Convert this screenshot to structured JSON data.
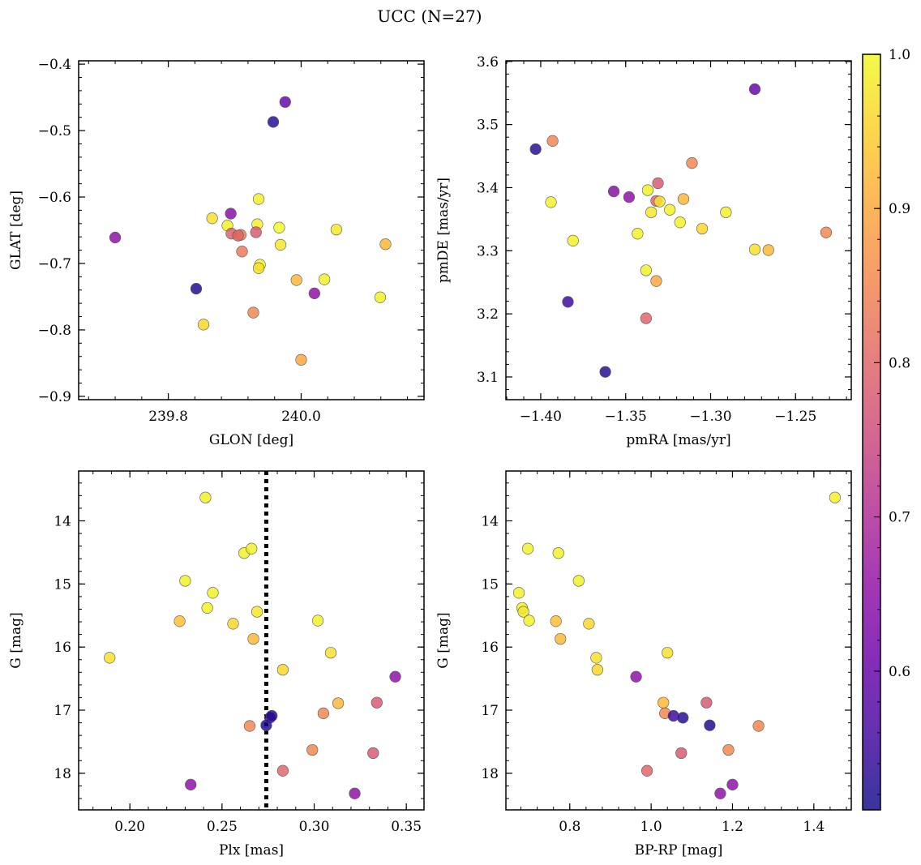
{
  "figure": {
    "suptitle": "UCC (N=27)"
  },
  "colorbar": {
    "colormap": "plasma",
    "range": [
      0.51,
      1.0
    ],
    "ticks": [
      0.6,
      0.7,
      0.8,
      0.9,
      1.0
    ],
    "tick_labels": [
      "0.6",
      "0.7",
      "0.8",
      "0.9",
      "1.0"
    ]
  },
  "chart_data": [
    {
      "type": "scatter",
      "panel": "top-left",
      "xlabel": "GLON [deg]",
      "ylabel": "GLAT [deg]",
      "xlim": [
        239.665,
        240.185
      ],
      "ylim": [
        -0.905,
        -0.395
      ],
      "xticks": [
        239.8,
        240.0
      ],
      "xtick_labels": [
        "239.8",
        "240.0"
      ],
      "yticks": [
        -0.9,
        -0.8,
        -0.7,
        -0.6,
        -0.5,
        -0.4
      ],
      "ytick_labels": [
        "−0.9",
        "−0.8",
        "−0.7",
        "−0.6",
        "−0.5",
        "−0.4"
      ],
      "x": [
        239.976,
        239.958,
        239.72,
        239.842,
        239.853,
        239.866,
        239.889,
        239.895,
        239.894,
        239.909,
        239.905,
        239.911,
        239.936,
        239.934,
        239.932,
        239.967,
        239.969,
        239.938,
        239.936,
        239.928,
        239.993,
        240.0,
        240.053,
        240.035,
        240.02,
        240.127,
        240.119
      ],
      "y": [
        -0.457,
        -0.487,
        -0.661,
        -0.738,
        -0.792,
        -0.632,
        -0.643,
        -0.655,
        -0.625,
        -0.657,
        -0.658,
        -0.682,
        -0.603,
        -0.641,
        -0.653,
        -0.646,
        -0.672,
        -0.702,
        -0.707,
        -0.774,
        -0.725,
        -0.845,
        -0.649,
        -0.724,
        -0.745,
        -0.671,
        -0.751
      ],
      "c": [
        0.6,
        0.53,
        0.65,
        0.52,
        0.96,
        0.97,
        0.99,
        0.79,
        0.64,
        0.84,
        0.8,
        0.83,
        0.99,
        0.99,
        0.78,
        1.0,
        0.98,
        1.0,
        0.97,
        0.85,
        0.92,
        0.9,
        0.98,
        0.99,
        0.65,
        0.92,
        0.99
      ]
    },
    {
      "type": "scatter",
      "panel": "top-right",
      "xlabel": "pmRA [mas/yr]",
      "ylabel": "pmDE [mas/yr]",
      "xlim": [
        -1.4205,
        -1.2172
      ],
      "ylim": [
        3.064,
        3.601
      ],
      "xticks": [
        -1.4,
        -1.35,
        -1.3,
        -1.25
      ],
      "xtick_labels": [
        "−1.40",
        "−1.35",
        "−1.30",
        "−1.25"
      ],
      "yticks": [
        3.1,
        3.2,
        3.3,
        3.4,
        3.5,
        3.6
      ],
      "ytick_labels": [
        "3.1",
        "3.2",
        "3.3",
        "3.4",
        "3.5",
        "3.6"
      ],
      "x": [
        -1.274,
        -1.403,
        -1.393,
        -1.394,
        -1.381,
        -1.384,
        -1.362,
        -1.357,
        -1.348,
        -1.337,
        -1.335,
        -1.338,
        -1.343,
        -1.338,
        -1.331,
        -1.332,
        -1.33,
        -1.324,
        -1.318,
        -1.316,
        -1.332,
        -1.311,
        -1.305,
        -1.291,
        -1.274,
        -1.266,
        -1.232
      ],
      "y": [
        3.556,
        3.461,
        3.474,
        3.377,
        3.316,
        3.219,
        3.108,
        3.394,
        3.385,
        3.396,
        3.361,
        3.269,
        3.327,
        3.193,
        3.407,
        3.379,
        3.378,
        3.365,
        3.345,
        3.382,
        3.252,
        3.439,
        3.335,
        3.361,
        3.302,
        3.301,
        3.329
      ],
      "c": [
        0.6,
        0.53,
        0.85,
        0.99,
        0.99,
        0.55,
        0.53,
        0.64,
        0.65,
        0.99,
        0.98,
        0.99,
        0.99,
        0.8,
        0.78,
        0.8,
        0.98,
        0.99,
        0.99,
        0.92,
        0.9,
        0.85,
        0.96,
        0.99,
        0.97,
        0.92,
        0.85
      ]
    },
    {
      "type": "scatter",
      "panel": "bottom-left",
      "xlabel": "Plx [mas]",
      "ylabel": "G [mag]",
      "xlim": [
        0.1722,
        0.3596
      ],
      "ylim": [
        18.58,
        13.21
      ],
      "y_inverted": true,
      "xticks": [
        0.2,
        0.25,
        0.3,
        0.35
      ],
      "xtick_labels": [
        "0.20",
        "0.25",
        "0.30",
        "0.35"
      ],
      "yticks": [
        14,
        15,
        16,
        17,
        18
      ],
      "ytick_labels": [
        "14",
        "15",
        "16",
        "17",
        "18"
      ],
      "vline_x": 0.274,
      "x": [
        0.189,
        0.233,
        0.241,
        0.23,
        0.227,
        0.242,
        0.245,
        0.256,
        0.262,
        0.266,
        0.269,
        0.267,
        0.265,
        0.274,
        0.276,
        0.277,
        0.283,
        0.283,
        0.299,
        0.302,
        0.305,
        0.309,
        0.313,
        0.322,
        0.332,
        0.334,
        0.344
      ],
      "y": [
        16.17,
        18.18,
        13.63,
        14.95,
        15.59,
        15.38,
        15.14,
        15.63,
        14.51,
        14.44,
        15.44,
        15.87,
        17.25,
        17.24,
        17.12,
        17.09,
        16.36,
        17.96,
        17.63,
        15.58,
        17.05,
        16.09,
        16.89,
        18.32,
        17.68,
        16.88,
        16.47
      ],
      "c": [
        0.97,
        0.65,
        0.99,
        0.99,
        0.93,
        0.99,
        0.99,
        0.96,
        0.99,
        0.99,
        0.98,
        0.92,
        0.85,
        0.52,
        0.55,
        0.53,
        0.96,
        0.8,
        0.85,
        0.99,
        0.85,
        0.97,
        0.92,
        0.65,
        0.78,
        0.78,
        0.65
      ]
    },
    {
      "type": "scatter",
      "panel": "bottom-right",
      "xlabel": "BP-RP [mag]",
      "ylabel": "G [mag]",
      "xlim": [
        0.643,
        1.492
      ],
      "ylim": [
        18.58,
        13.21
      ],
      "y_inverted": true,
      "xticks": [
        0.8,
        1.0,
        1.2,
        1.4
      ],
      "xtick_labels": [
        "0.8",
        "1.0",
        "1.2",
        "1.4"
      ],
      "yticks": [
        14,
        15,
        16,
        17,
        18
      ],
      "ytick_labels": [
        "14",
        "15",
        "16",
        "17",
        "18"
      ],
      "x": [
        1.452,
        0.697,
        0.772,
        0.822,
        0.675,
        0.683,
        0.686,
        0.7,
        0.766,
        0.847,
        0.777,
        0.865,
        0.868,
        1.04,
        0.963,
        1.03,
        1.034,
        1.136,
        1.055,
        1.078,
        1.144,
        1.264,
        1.19,
        1.074,
        0.99,
        1.17,
        1.2
      ],
      "y": [
        13.63,
        14.44,
        14.51,
        14.95,
        15.14,
        15.38,
        15.44,
        15.58,
        15.59,
        15.63,
        15.87,
        16.17,
        16.36,
        16.09,
        16.47,
        16.88,
        17.05,
        16.88,
        17.09,
        17.12,
        17.24,
        17.25,
        17.63,
        17.68,
        17.96,
        18.32,
        18.18
      ],
      "c": [
        0.99,
        0.99,
        0.99,
        0.99,
        0.99,
        0.99,
        0.98,
        0.99,
        0.93,
        0.96,
        0.92,
        0.97,
        0.96,
        0.97,
        0.65,
        0.92,
        0.85,
        0.78,
        0.55,
        0.53,
        0.52,
        0.85,
        0.85,
        0.78,
        0.8,
        0.65,
        0.65
      ]
    }
  ]
}
